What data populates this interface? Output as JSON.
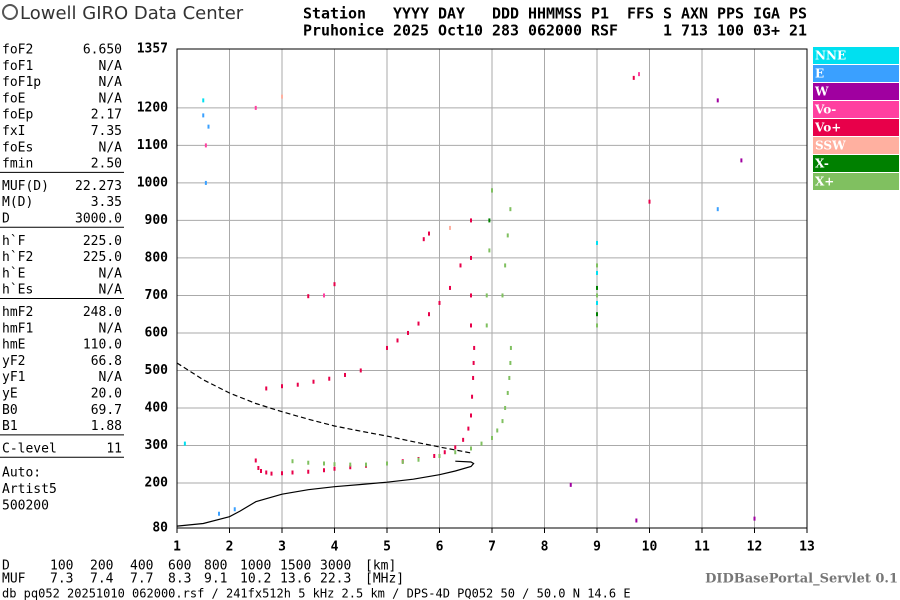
{
  "header": {
    "logo": "Lowell GIRO Data Center",
    "line1": "Station   YYYY DAY   DDD HHMMSS P1  FFS S AXN PPS IGA PS",
    "line2": "Pruhonice 2025 Oct10 283 062000 RSF     1 713 100 03+ 21"
  },
  "parameters": [
    [
      [
        "foF2",
        "6.650"
      ],
      [
        "foF1",
        "N/A"
      ],
      [
        "foF1p",
        "N/A"
      ],
      [
        "foE",
        "N/A"
      ],
      [
        "foEp",
        "2.17"
      ],
      [
        "fxI",
        "7.35"
      ],
      [
        "foEs",
        "N/A"
      ],
      [
        "fmin",
        "2.50"
      ]
    ],
    [
      [
        "MUF(D)",
        "22.273"
      ],
      [
        "M(D)",
        "3.35"
      ],
      [
        "D",
        "3000.0"
      ]
    ],
    [
      [
        "h`F",
        "225.0"
      ],
      [
        "h`F2",
        "225.0"
      ],
      [
        "h`E",
        "N/A"
      ],
      [
        "h`Es",
        "N/A"
      ]
    ],
    [
      [
        "hmF2",
        "248.0"
      ],
      [
        "hmF1",
        "N/A"
      ],
      [
        "hmE",
        "110.0"
      ],
      [
        "yF2",
        "66.8"
      ],
      [
        "yF1",
        "N/A"
      ],
      [
        "yE",
        "20.0"
      ],
      [
        "B0",
        "69.7"
      ],
      [
        "B1",
        "1.88"
      ]
    ],
    [
      [
        "C-level",
        "11"
      ]
    ]
  ],
  "auto": [
    "Auto:",
    "Artist5",
    "500200"
  ],
  "footer": {
    "d_row": {
      "label": "D",
      "values": [
        "100",
        "200",
        "400",
        "600",
        "800",
        "1000",
        "1500",
        "3000"
      ],
      "unit": "[km]"
    },
    "muf_row": {
      "label": "MUF",
      "values": [
        "7.3",
        "7.4",
        "7.7",
        "8.3",
        "9.1",
        "10.2",
        "13.6",
        "22.3"
      ],
      "unit": "[MHz]"
    },
    "servlet": "DIDBasePortal_Servlet 0.1",
    "file": "db pq052 20251010 062000.rsf / 241fx512h 5 kHz 2.5 km / DPS-4D PQ052 50 / 50.0 N 14.6 E"
  },
  "chart_data": {
    "type": "scatter",
    "xlim": [
      1,
      13
    ],
    "ylim": [
      80,
      1357
    ],
    "xticks": [
      1,
      2,
      3,
      4,
      5,
      6,
      7,
      8,
      9,
      10,
      11,
      12,
      13
    ],
    "yticks": [
      80,
      200,
      300,
      400,
      500,
      600,
      700,
      800,
      900,
      1000,
      1100,
      1200,
      1357
    ],
    "grid": true,
    "series": [
      {
        "name": "NNE",
        "color": "#00e0f0",
        "x": [
          9.0,
          9.0,
          9.0,
          1.15,
          1.5
        ],
        "values": [
          840,
          760,
          680,
          305,
          1220
        ]
      },
      {
        "name": "E",
        "color": "#3aa0ff",
        "x": [
          1.55,
          1.6,
          1.5,
          11.3,
          2.1,
          1.8
        ],
        "values": [
          1000,
          1150,
          1180,
          930,
          130,
          118
        ]
      },
      {
        "name": "W",
        "color": "#a000a0",
        "x": [
          9.75,
          11.75,
          12.0,
          11.3,
          8.5
        ],
        "values": [
          100,
          1060,
          105,
          1220,
          195
        ]
      },
      {
        "name": "Vo-",
        "color": "#ff40a0",
        "x": [
          1.55,
          2.5,
          3.8,
          9.8
        ],
        "values": [
          1100,
          1200,
          700,
          1290
        ]
      },
      {
        "name": "Vo+",
        "color": "#e8004a",
        "x": [
          2.5,
          2.55,
          2.6,
          2.7,
          2.8,
          3.0,
          3.2,
          3.5,
          3.8,
          4.0,
          4.3,
          4.6,
          5.0,
          5.3,
          5.6,
          5.9,
          6.1,
          6.3,
          6.45,
          6.55,
          6.6,
          6.62,
          6.64,
          6.65,
          6.66,
          2.7,
          3.0,
          3.3,
          3.6,
          3.9,
          4.2,
          4.5,
          5.0,
          5.2,
          5.4,
          5.6,
          5.8,
          6.0,
          6.2,
          6.4,
          6.6,
          6.6,
          6.6,
          6.6,
          3.5,
          4.0,
          5.7,
          5.8,
          9.7,
          10.0
        ],
        "values": [
          260,
          240,
          232,
          228,
          225,
          226,
          228,
          230,
          234,
          238,
          242,
          246,
          252,
          258,
          264,
          272,
          282,
          295,
          315,
          345,
          380,
          430,
          480,
          520,
          560,
          452,
          458,
          462,
          470,
          478,
          488,
          500,
          560,
          580,
          600,
          625,
          650,
          680,
          720,
          780,
          620,
          700,
          800,
          900,
          698,
          730,
          850,
          865,
          1280,
          950
        ]
      },
      {
        "name": "SSW",
        "color": "#ffb0a0",
        "x": [
          3.0,
          6.2
        ],
        "values": [
          1230,
          880
        ]
      },
      {
        "name": "X-",
        "color": "#008000",
        "x": [
          6.95,
          7.0,
          9.0,
          9.0
        ],
        "values": [
          900,
          980,
          650,
          720
        ]
      },
      {
        "name": "X+",
        "color": "#80c060",
        "x": [
          3.2,
          3.5,
          3.8,
          4.0,
          4.3,
          4.6,
          5.0,
          5.3,
          5.6,
          6.0,
          6.3,
          6.6,
          6.8,
          7.0,
          7.1,
          7.2,
          7.25,
          7.3,
          7.33,
          7.35,
          7.36,
          6.9,
          6.9,
          6.95,
          7.0,
          7.2,
          7.25,
          7.3,
          7.35,
          9.0,
          9.0,
          9.0
        ],
        "values": [
          258,
          254,
          252,
          250,
          249,
          249,
          252,
          256,
          262,
          272,
          282,
          292,
          305,
          320,
          340,
          365,
          400,
          440,
          480,
          520,
          560,
          620,
          700,
          820,
          980,
          700,
          780,
          860,
          930,
          620,
          700,
          780
        ]
      }
    ],
    "profile_lines": [
      {
        "dashed": true,
        "x": [
          1,
          1.5,
          2,
          2.5,
          3,
          3.5,
          4,
          4.5,
          5,
          5.5,
          6,
          6.3,
          6.6
        ],
        "values": [
          520,
          475,
          440,
          412,
          390,
          370,
          352,
          338,
          325,
          310,
          296,
          288,
          280
        ]
      },
      {
        "dashed": false,
        "x": [
          1,
          1.5,
          2,
          2.2,
          2.5,
          3,
          3.5,
          4,
          4.5,
          5,
          5.5,
          6,
          6.3,
          6.6,
          6.65,
          6.6,
          6.3
        ],
        "values": [
          85,
          92,
          110,
          125,
          150,
          170,
          182,
          190,
          196,
          202,
          210,
          222,
          232,
          244,
          252,
          256,
          258
        ]
      }
    ]
  }
}
